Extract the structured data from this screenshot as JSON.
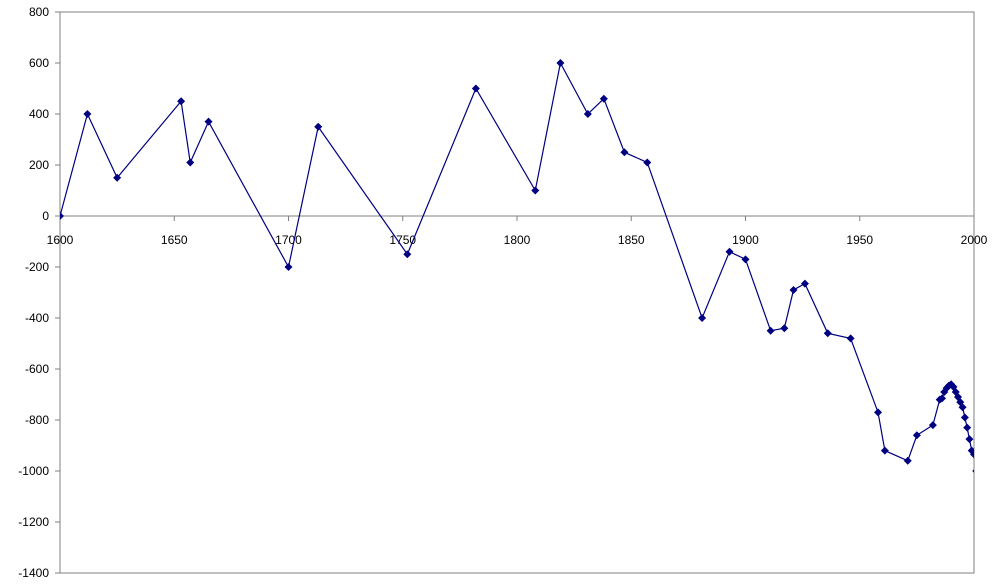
{
  "chart_data": {
    "type": "line",
    "title": "",
    "xlabel": "",
    "ylabel": "",
    "xlim": [
      1600,
      2000
    ],
    "ylim": [
      -1400,
      800
    ],
    "x_ticks": [
      1600,
      1650,
      1700,
      1750,
      1800,
      1850,
      1900,
      1950,
      2000
    ],
    "y_ticks": [
      800,
      600,
      400,
      200,
      0,
      -200,
      -400,
      -600,
      -800,
      -1000,
      -1200,
      -1400
    ],
    "grid": false,
    "legend": "none",
    "line_color": "#000080",
    "marker": "diamond",
    "series": [
      {
        "points": [
          [
            1600,
            0
          ],
          [
            1612,
            400
          ],
          [
            1625,
            150
          ],
          [
            1653,
            450
          ],
          [
            1657,
            210
          ],
          [
            1665,
            370
          ],
          [
            1700,
            -200
          ],
          [
            1713,
            350
          ],
          [
            1752,
            -150
          ],
          [
            1782,
            500
          ],
          [
            1808,
            100
          ],
          [
            1819,
            600
          ],
          [
            1831,
            400
          ],
          [
            1838,
            460
          ],
          [
            1847,
            250
          ],
          [
            1857,
            210
          ],
          [
            1881,
            -400
          ],
          [
            1893,
            -140
          ],
          [
            1900,
            -170
          ],
          [
            1911,
            -450
          ],
          [
            1917,
            -440
          ],
          [
            1921,
            -290
          ],
          [
            1926,
            -265
          ],
          [
            1936,
            -460
          ],
          [
            1946,
            -480
          ],
          [
            1958,
            -770
          ],
          [
            1961,
            -920
          ],
          [
            1971,
            -960
          ],
          [
            1975,
            -860
          ],
          [
            1982,
            -820
          ],
          [
            1985,
            -720
          ],
          [
            1986,
            -715
          ],
          [
            1987,
            -690
          ],
          [
            1988,
            -675
          ],
          [
            1989,
            -665
          ],
          [
            1990,
            -660
          ],
          [
            1991,
            -670
          ],
          [
            1992,
            -690
          ],
          [
            1993,
            -710
          ],
          [
            1994,
            -730
          ],
          [
            1995,
            -750
          ],
          [
            1996,
            -790
          ],
          [
            1997,
            -830
          ],
          [
            1998,
            -875
          ],
          [
            1999,
            -920
          ],
          [
            2000,
            -935
          ],
          [
            2001,
            -1000
          ]
        ]
      }
    ]
  }
}
